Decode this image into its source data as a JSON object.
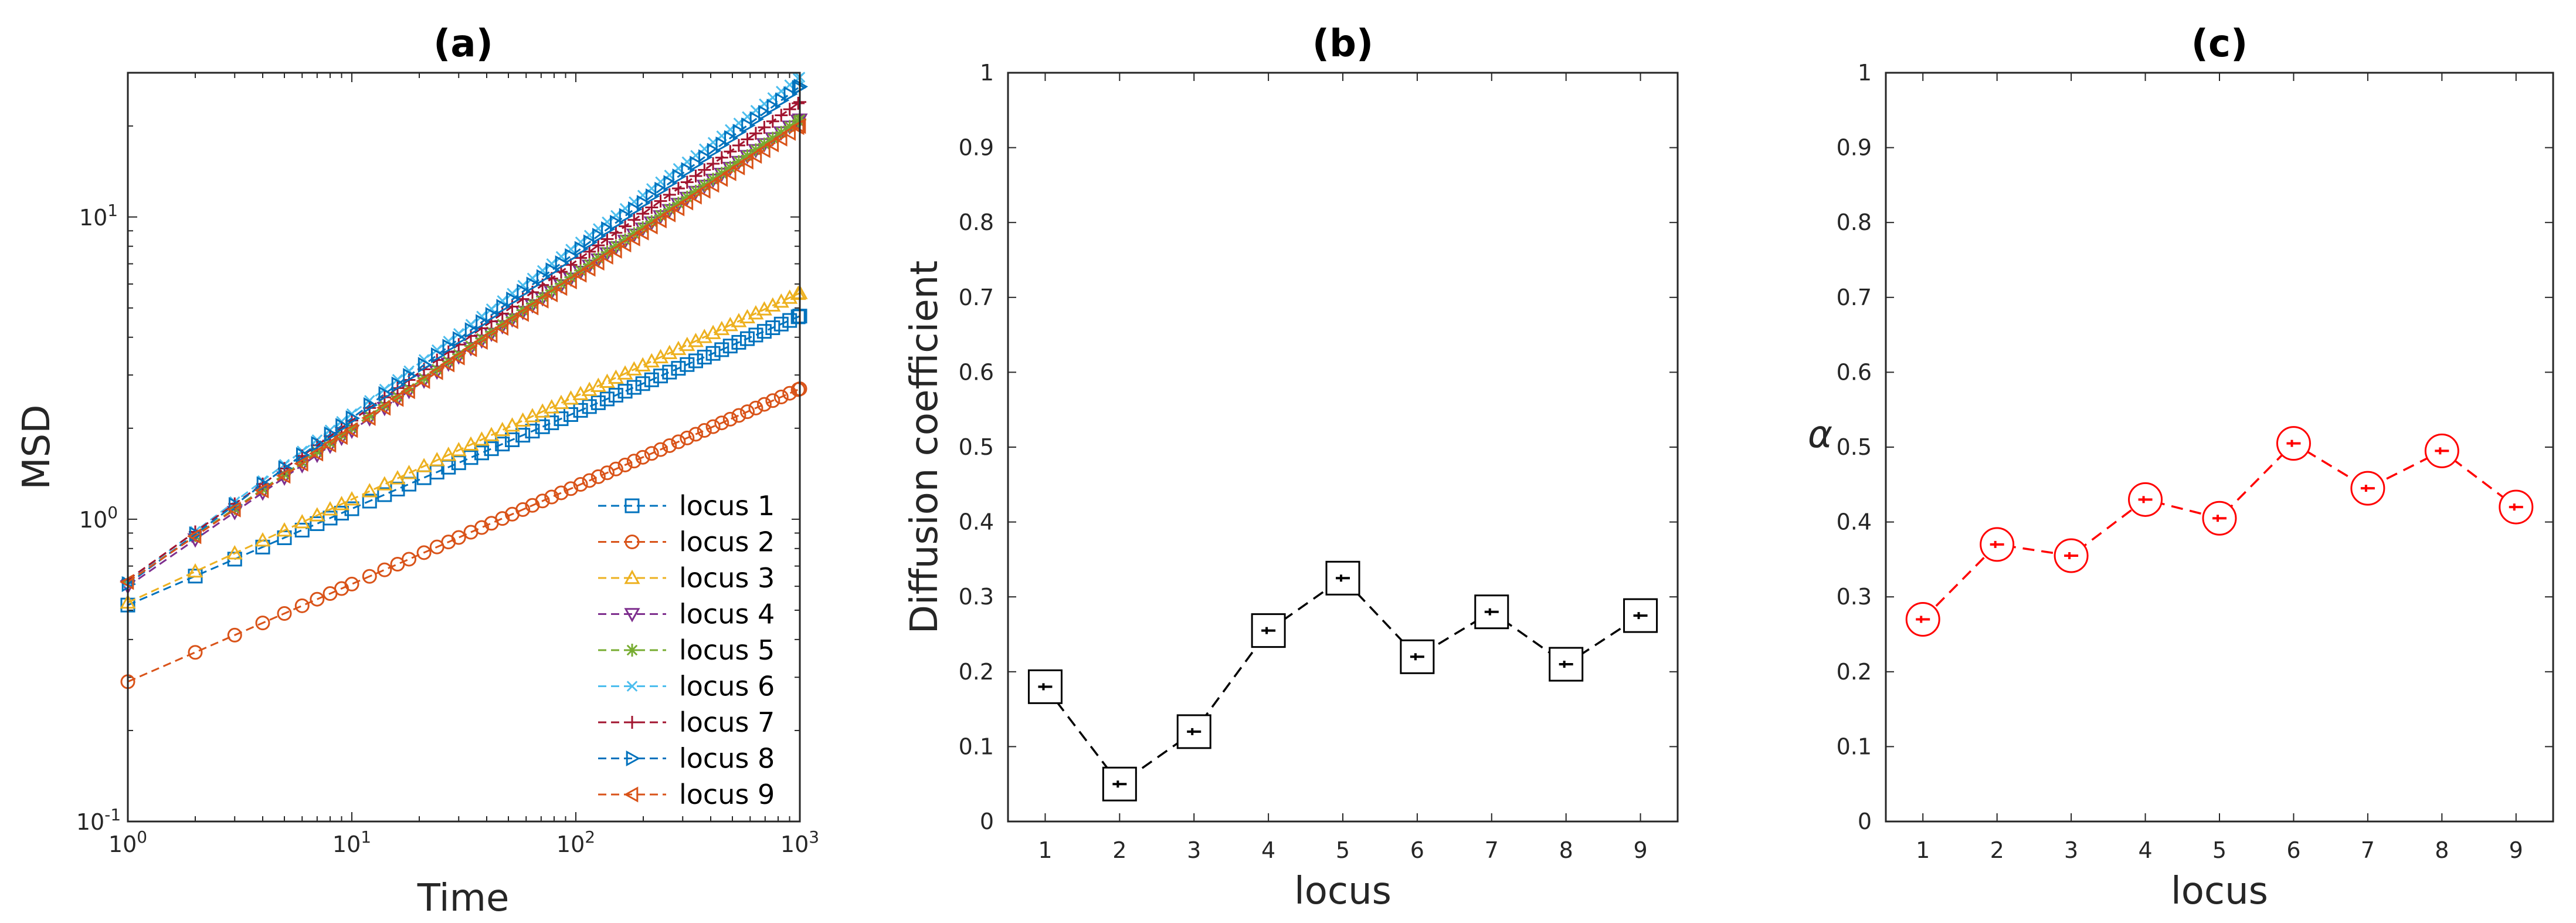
{
  "chart_data": [
    {
      "type": "line",
      "title": "(a)",
      "xlabel": "Time",
      "ylabel": "MSD",
      "xscale": "log",
      "yscale": "log",
      "xlim": [
        1,
        1000
      ],
      "ylim": [
        0.1,
        30
      ],
      "xticks": [
        "10^0",
        "10^1",
        "10^2",
        "10^3"
      ],
      "yticks": [
        "10^-1",
        "10^0",
        "10^1"
      ],
      "legend_position": "bottom-right",
      "series": [
        {
          "name": "locus 1",
          "color": "#0072BD",
          "marker": "square",
          "msd_at_1": 0.52,
          "msd_at_1000": 4.7
        },
        {
          "name": "locus 2",
          "color": "#D95319",
          "marker": "circle",
          "msd_at_1": 0.29,
          "msd_at_1000": 2.7
        },
        {
          "name": "locus 3",
          "color": "#EDB120",
          "marker": "triangle-up",
          "msd_at_1": 0.53,
          "msd_at_1000": 5.6
        },
        {
          "name": "locus 4",
          "color": "#7E2F8E",
          "marker": "triangle-down",
          "msd_at_1": 0.6,
          "msd_at_1000": 21
        },
        {
          "name": "locus 5",
          "color": "#77AC30",
          "marker": "asterisk",
          "msd_at_1": 0.62,
          "msd_at_1000": 21
        },
        {
          "name": "locus 6",
          "color": "#4DBEEE",
          "marker": "x",
          "msd_at_1": 0.62,
          "msd_at_1000": 29
        },
        {
          "name": "locus 7",
          "color": "#A2142F",
          "marker": "plus",
          "msd_at_1": 0.63,
          "msd_at_1000": 24
        },
        {
          "name": "locus 8",
          "color": "#0072BD",
          "marker": "triangle-right",
          "msd_at_1": 0.61,
          "msd_at_1000": 27
        },
        {
          "name": "locus 9",
          "color": "#D95319",
          "marker": "triangle-left",
          "msd_at_1": 0.62,
          "msd_at_1000": 20
        }
      ]
    },
    {
      "type": "line",
      "title": "(b)",
      "xlabel": "locus",
      "ylabel": "Diffusion coefficient",
      "xlim": [
        0.5,
        9.5
      ],
      "ylim": [
        0,
        1
      ],
      "categories": [
        "1",
        "2",
        "3",
        "4",
        "5",
        "6",
        "7",
        "8",
        "9"
      ],
      "yticks": [
        "0",
        "0.1",
        "0.2",
        "0.3",
        "0.4",
        "0.5",
        "0.6",
        "0.7",
        "0.8",
        "0.9",
        "1"
      ],
      "values": [
        0.18,
        0.05,
        0.12,
        0.255,
        0.325,
        0.22,
        0.28,
        0.21,
        0.275
      ],
      "color": "#000000",
      "marker": "square",
      "line_style": "dashed"
    },
    {
      "type": "line",
      "title": "(c)",
      "xlabel": "locus",
      "ylabel": "α",
      "xlim": [
        0.5,
        9.5
      ],
      "ylim": [
        0,
        1
      ],
      "categories": [
        "1",
        "2",
        "3",
        "4",
        "5",
        "6",
        "7",
        "8",
        "9"
      ],
      "yticks": [
        "0",
        "0.1",
        "0.2",
        "0.3",
        "0.4",
        "0.5",
        "0.6",
        "0.7",
        "0.8",
        "0.9",
        "1"
      ],
      "values": [
        0.27,
        0.37,
        0.355,
        0.43,
        0.405,
        0.505,
        0.445,
        0.495,
        0.42
      ],
      "color": "#FF0000",
      "marker": "circle",
      "line_style": "dashed"
    }
  ]
}
